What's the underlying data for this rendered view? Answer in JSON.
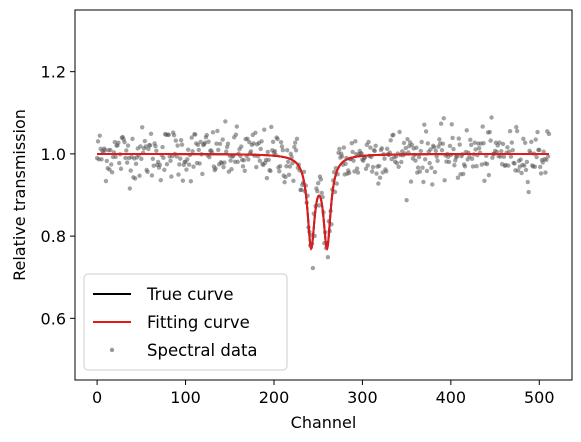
{
  "chart_data": {
    "type": "scatter",
    "xlabel": "Channel",
    "ylabel": "Relative transmission",
    "xlim": [
      -25,
      537
    ],
    "ylim": [
      0.45,
      1.35
    ],
    "xticks": [
      0,
      100,
      200,
      300,
      400,
      500
    ],
    "yticks": [
      0.6,
      0.8,
      1.0,
      1.2
    ],
    "xtick_labels": [
      "0",
      "100",
      "200",
      "300",
      "400",
      "500"
    ],
    "ytick_labels": [
      "0.6",
      "0.8",
      "1.0",
      "1.2"
    ],
    "grid": false,
    "legend_position": "lower-left",
    "model": {
      "baseline": 1.0,
      "dips": [
        {
          "center": 242,
          "depth": 0.215,
          "width": 5
        },
        {
          "center": 260,
          "depth": 0.215,
          "width": 5
        }
      ]
    },
    "series": [
      {
        "name": "True curve",
        "kind": "line",
        "color": "#000000"
      },
      {
        "name": "Fitting curve",
        "kind": "line",
        "color": "#e31a1c"
      },
      {
        "name": "Spectral data",
        "kind": "scatter",
        "color": "#555555",
        "n_points": 512,
        "noise_sd": 0.032,
        "x_range": [
          0,
          511
        ]
      }
    ]
  }
}
